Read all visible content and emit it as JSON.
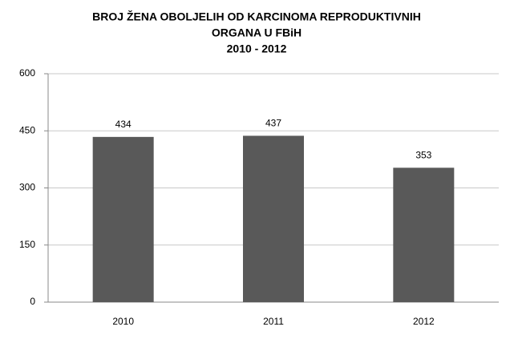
{
  "chart_data": {
    "type": "bar",
    "title": [
      "BROJ ŽENA OBOLJELIH OD KARCINOMA REPRODUKTIVNIH",
      "ORGANA U FBiH",
      "2010 - 2012"
    ],
    "categories": [
      "2010",
      "2011",
      "2012"
    ],
    "values": [
      434,
      437,
      353
    ],
    "color": "#595959",
    "ylim": [
      0,
      600
    ],
    "yticks": [
      0,
      150,
      300,
      450,
      600
    ],
    "grid": true,
    "data_labels": true
  }
}
